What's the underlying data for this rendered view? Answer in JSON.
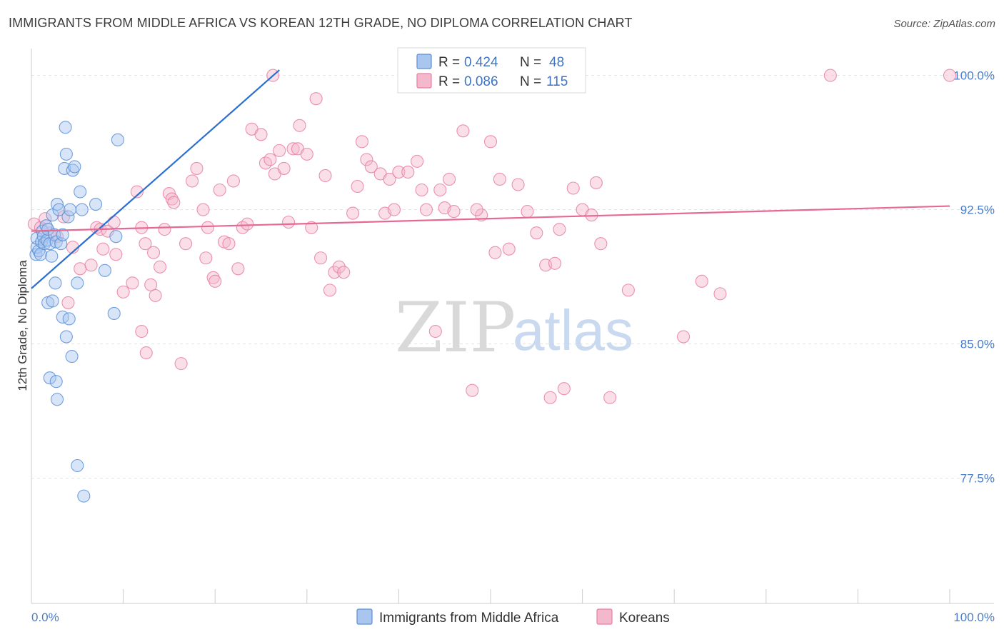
{
  "title": "IMMIGRANTS FROM MIDDLE AFRICA VS KOREAN 12TH GRADE, NO DIPLOMA CORRELATION CHART",
  "source": "Source: ZipAtlas.com",
  "watermark": {
    "part1": "ZIP",
    "part2": "atlas"
  },
  "legend": {
    "r_label": "R =",
    "n_label": "N =",
    "rows": [
      {
        "r": "0.424",
        "n": "48",
        "color": "#5b8fd6"
      },
      {
        "r": "0.086",
        "n": "115",
        "color": "#e87fa3"
      }
    ]
  },
  "colors": {
    "blue": "#5b8fd6",
    "blue_fill": "#a9c6ef",
    "pink": "#e87fa3",
    "pink_fill": "#f4b8cc",
    "blue_line": "#2a6fd0",
    "pink_line": "#e56a93"
  },
  "chart_data": {
    "type": "scatter",
    "xlabel": "",
    "ylabel": "12th Grade, No Diploma",
    "xlim": [
      0,
      100
    ],
    "ylim": [
      70.5,
      101.5
    ],
    "x_tick_labels": [
      {
        "value": 0,
        "label": "0.0%"
      },
      {
        "value": 100,
        "label": "100.0%"
      }
    ],
    "y_ticks": [
      {
        "value": 100,
        "label": "100.0%"
      },
      {
        "value": 92.5,
        "label": "92.5%"
      },
      {
        "value": 85,
        "label": "85.0%"
      },
      {
        "value": 77.5,
        "label": "77.5%"
      }
    ],
    "series": [
      {
        "name": "Immigrants from Middle Africa",
        "color": "#5b8fd6",
        "trend": {
          "x": [
            0,
            27
          ],
          "y": [
            88.1,
            100.3
          ]
        },
        "points": [
          [
            0.5,
            90.0
          ],
          [
            0.6,
            90.4
          ],
          [
            0.6,
            90.9
          ],
          [
            0.8,
            90.2
          ],
          [
            1.0,
            90.0
          ],
          [
            1.1,
            90.7
          ],
          [
            1.2,
            91.3
          ],
          [
            1.3,
            91.0
          ],
          [
            1.4,
            90.6
          ],
          [
            1.6,
            91.6
          ],
          [
            1.7,
            90.8
          ],
          [
            1.8,
            91.4
          ],
          [
            2.0,
            90.6
          ],
          [
            2.2,
            89.9
          ],
          [
            2.3,
            92.2
          ],
          [
            2.5,
            91.1
          ],
          [
            2.6,
            88.4
          ],
          [
            2.7,
            90.7
          ],
          [
            2.8,
            92.8
          ],
          [
            3.0,
            92.5
          ],
          [
            3.2,
            90.6
          ],
          [
            3.4,
            91.1
          ],
          [
            3.6,
            94.8
          ],
          [
            3.7,
            97.1
          ],
          [
            3.8,
            95.6
          ],
          [
            4.0,
            92.1
          ],
          [
            4.2,
            92.5
          ],
          [
            4.5,
            94.7
          ],
          [
            4.7,
            94.9
          ],
          [
            5.0,
            88.4
          ],
          [
            5.3,
            93.5
          ],
          [
            5.5,
            92.5
          ],
          [
            1.8,
            87.3
          ],
          [
            2.3,
            87.4
          ],
          [
            3.4,
            86.5
          ],
          [
            3.8,
            85.4
          ],
          [
            4.1,
            86.4
          ],
          [
            4.4,
            84.3
          ],
          [
            2.0,
            83.1
          ],
          [
            2.7,
            82.9
          ],
          [
            2.8,
            81.9
          ],
          [
            5.0,
            78.2
          ],
          [
            5.7,
            76.5
          ],
          [
            7.0,
            92.8
          ],
          [
            8.0,
            89.1
          ],
          [
            9.0,
            86.7
          ],
          [
            9.2,
            91.0
          ],
          [
            9.4,
            96.4
          ]
        ]
      },
      {
        "name": "Koreans",
        "color": "#e87fa3",
        "trend": {
          "x": [
            0,
            100
          ],
          "y": [
            91.3,
            92.7
          ]
        },
        "points": [
          [
            0.3,
            91.7
          ],
          [
            1.0,
            91.5
          ],
          [
            1.5,
            92.0
          ],
          [
            2.0,
            91.2
          ],
          [
            2.8,
            91.0
          ],
          [
            3.5,
            92.1
          ],
          [
            4.0,
            87.3
          ],
          [
            4.5,
            90.4
          ],
          [
            5.3,
            89.2
          ],
          [
            6.5,
            89.4
          ],
          [
            7.1,
            91.5
          ],
          [
            7.5,
            91.4
          ],
          [
            7.8,
            90.3
          ],
          [
            8.3,
            91.3
          ],
          [
            9.0,
            91.8
          ],
          [
            9.2,
            90.0
          ],
          [
            10.0,
            87.9
          ],
          [
            11.0,
            88.4
          ],
          [
            12.0,
            91.5
          ],
          [
            12.4,
            90.6
          ],
          [
            11.5,
            93.5
          ],
          [
            12.0,
            85.7
          ],
          [
            12.5,
            84.5
          ],
          [
            13.0,
            88.3
          ],
          [
            13.3,
            90.1
          ],
          [
            13.5,
            87.7
          ],
          [
            14.0,
            89.3
          ],
          [
            14.5,
            91.4
          ],
          [
            15.0,
            93.4
          ],
          [
            15.3,
            93.1
          ],
          [
            15.5,
            92.9
          ],
          [
            16.3,
            83.9
          ],
          [
            16.8,
            90.6
          ],
          [
            17.5,
            94.1
          ],
          [
            18.0,
            94.8
          ],
          [
            18.7,
            92.5
          ],
          [
            19.2,
            91.5
          ],
          [
            19.8,
            88.7
          ],
          [
            20.0,
            88.5
          ],
          [
            20.5,
            93.6
          ],
          [
            21.0,
            90.7
          ],
          [
            21.5,
            90.6
          ],
          [
            22.0,
            94.1
          ],
          [
            22.5,
            89.2
          ],
          [
            23.0,
            91.5
          ],
          [
            23.5,
            91.7
          ],
          [
            24.0,
            97.0
          ],
          [
            25.0,
            96.7
          ],
          [
            25.5,
            95.1
          ],
          [
            26.0,
            95.3
          ],
          [
            26.5,
            94.5
          ],
          [
            27.0,
            95.8
          ],
          [
            27.5,
            94.8
          ],
          [
            28.0,
            91.8
          ],
          [
            28.5,
            95.9
          ],
          [
            29.0,
            95.9
          ],
          [
            29.2,
            97.2
          ],
          [
            30.0,
            95.6
          ],
          [
            30.5,
            91.5
          ],
          [
            31.0,
            98.7
          ],
          [
            31.5,
            89.8
          ],
          [
            32.0,
            94.4
          ],
          [
            32.5,
            88.0
          ],
          [
            33.0,
            89.0
          ],
          [
            33.5,
            89.3
          ],
          [
            34.0,
            89.0
          ],
          [
            35.0,
            92.3
          ],
          [
            35.5,
            93.8
          ],
          [
            36.0,
            96.3
          ],
          [
            36.5,
            95.3
          ],
          [
            37.0,
            94.9
          ],
          [
            38.0,
            94.5
          ],
          [
            38.5,
            92.3
          ],
          [
            39.0,
            94.2
          ],
          [
            39.5,
            92.5
          ],
          [
            40.0,
            94.6
          ],
          [
            41.0,
            94.6
          ],
          [
            42.0,
            95.2
          ],
          [
            42.5,
            93.6
          ],
          [
            43.0,
            92.5
          ],
          [
            44.0,
            85.7
          ],
          [
            44.5,
            93.6
          ],
          [
            45.0,
            92.6
          ],
          [
            45.5,
            94.2
          ],
          [
            46.0,
            92.4
          ],
          [
            47.0,
            96.9
          ],
          [
            48.0,
            82.4
          ],
          [
            49.0,
            92.2
          ],
          [
            50.0,
            96.3
          ],
          [
            50.5,
            90.1
          ],
          [
            51.0,
            94.2
          ],
          [
            52.0,
            90.3
          ],
          [
            53.0,
            93.9
          ],
          [
            54.0,
            92.4
          ],
          [
            55.0,
            91.2
          ],
          [
            56.0,
            89.4
          ],
          [
            56.5,
            82.0
          ],
          [
            57.0,
            89.5
          ],
          [
            57.5,
            91.4
          ],
          [
            58.0,
            82.5
          ],
          [
            59.0,
            93.7
          ],
          [
            60.0,
            92.5
          ],
          [
            61.0,
            92.2
          ],
          [
            62.0,
            90.6
          ],
          [
            63.0,
            82.0
          ],
          [
            65.0,
            88.0
          ],
          [
            71.0,
            85.4
          ],
          [
            73.0,
            88.5
          ],
          [
            75.0,
            87.8
          ],
          [
            87.0,
            100.0
          ],
          [
            100.0,
            100.0
          ],
          [
            26.3,
            100.0
          ],
          [
            19.0,
            89.8
          ],
          [
            48.5,
            92.5
          ],
          [
            61.5,
            94.0
          ]
        ]
      }
    ],
    "bottom_legend": [
      {
        "label": "Immigrants from Middle Africa",
        "color": "#5b8fd6"
      },
      {
        "label": "Koreans",
        "color": "#e87fa3"
      }
    ]
  }
}
